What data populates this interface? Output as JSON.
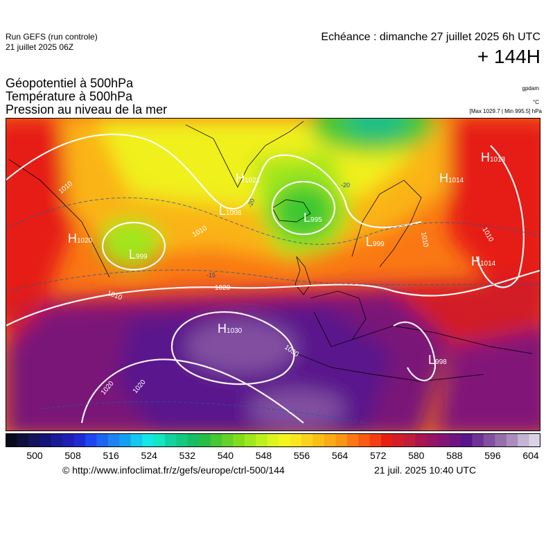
{
  "header": {
    "run_title": "Run GEFS (run controle)",
    "run_date": "21 juillet 2025 06Z",
    "valid_time": "Echéance : dimanche 27 juillet 2025 6h UTC",
    "lead_time": "+ 144H"
  },
  "fields": {
    "geopotential": "Géopotentiel à 500hPa",
    "temperature": "Température à 500hPa",
    "pressure": "Pression au niveau de la mer"
  },
  "units": {
    "geopotential": "gpdam",
    "temperature": "°C",
    "pressure": "[Max 1029.7 | Min 995.5] hPa"
  },
  "pressure_systems": [
    {
      "type": "H",
      "value": "1020"
    },
    {
      "type": "L",
      "value": "999"
    },
    {
      "type": "L",
      "value": "1008"
    },
    {
      "type": "H",
      "value": "1021"
    },
    {
      "type": "L",
      "value": "995"
    },
    {
      "type": "L",
      "value": "999"
    },
    {
      "type": "H",
      "value": "1013"
    },
    {
      "type": "H",
      "value": "1014"
    },
    {
      "type": "H",
      "value": "1014"
    },
    {
      "type": "H",
      "value": "1030"
    },
    {
      "type": "L",
      "value": "998"
    }
  ],
  "isobar_labels": [
    "1010",
    "1010",
    "1010",
    "1020",
    "1030",
    "1020",
    "1020",
    "1010",
    "1010",
    "1010"
  ],
  "temperature_labels": [
    "-20",
    "-20",
    "-15"
  ],
  "colorbar": {
    "labels": [
      "500",
      "508",
      "516",
      "524",
      "532",
      "540",
      "548",
      "556",
      "564",
      "572",
      "580",
      "588",
      "596",
      "604"
    ],
    "colors": [
      "#0a0a1e",
      "#0f0f3c",
      "#14145a",
      "#141478",
      "#1a1a96",
      "#1e1eb4",
      "#1e2ad2",
      "#1e46f0",
      "#1e64f0",
      "#1e82f0",
      "#14a0f0",
      "#14c8f0",
      "#14e6e6",
      "#14e6c0",
      "#14d2a0",
      "#14c882",
      "#14be64",
      "#28be46",
      "#46c832",
      "#64d228",
      "#82dc1e",
      "#a0e61e",
      "#bef01e",
      "#dcf51e",
      "#f5f51e",
      "#fae61e",
      "#fad21e",
      "#fabe14",
      "#faaa14",
      "#fa9614",
      "#fa7814",
      "#fa5a14",
      "#f53c14",
      "#e61e14",
      "#d21e28",
      "#be1e3c",
      "#aa1450",
      "#961464",
      "#821478",
      "#6e1482",
      "#5a148c",
      "#6e3296",
      "#8250a0",
      "#966eaa",
      "#aa8cbe",
      "#c3b4d2",
      "#dcd2e6"
    ]
  },
  "footer": {
    "source_url": "© http://www.infoclimat.fr/z/gefs/europe/ctrl-500/144",
    "generated": "21 juil. 2025 10:40 UTC"
  }
}
